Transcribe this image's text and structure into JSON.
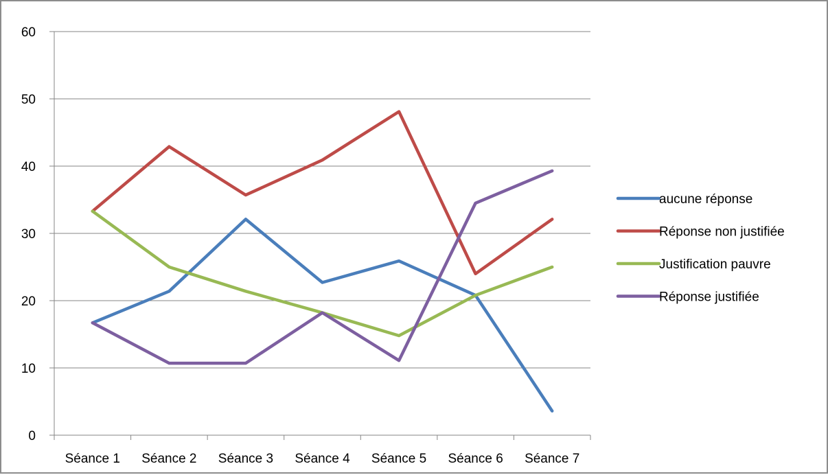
{
  "chart_data": {
    "type": "line",
    "title": "",
    "xlabel": "",
    "ylabel": "",
    "categories": [
      "Séance 1",
      "Séance 2",
      "Séance 3",
      "Séance 4",
      "Séance 5",
      "Séance 6",
      "Séance 7"
    ],
    "ylim": [
      0,
      60
    ],
    "yticks": [
      0,
      10,
      20,
      30,
      40,
      50,
      60
    ],
    "grid": true,
    "legend_position": "right",
    "series": [
      {
        "name": "aucune réponse",
        "color": "#4a7ebb",
        "values": [
          16.7,
          21.4,
          32.1,
          22.7,
          25.9,
          20.8,
          3.6
        ]
      },
      {
        "name": "Réponse non justifiée",
        "color": "#be4b48",
        "values": [
          33.3,
          42.9,
          35.7,
          40.9,
          48.1,
          24.0,
          32.1
        ]
      },
      {
        "name": "Justification pauvre",
        "color": "#98b954",
        "values": [
          33.3,
          25.0,
          21.4,
          18.2,
          14.8,
          20.8,
          25.0
        ]
      },
      {
        "name": "Réponse justifiée",
        "color": "#7d5fa0",
        "values": [
          16.7,
          10.7,
          10.7,
          18.2,
          11.1,
          34.5,
          39.3
        ]
      }
    ]
  }
}
